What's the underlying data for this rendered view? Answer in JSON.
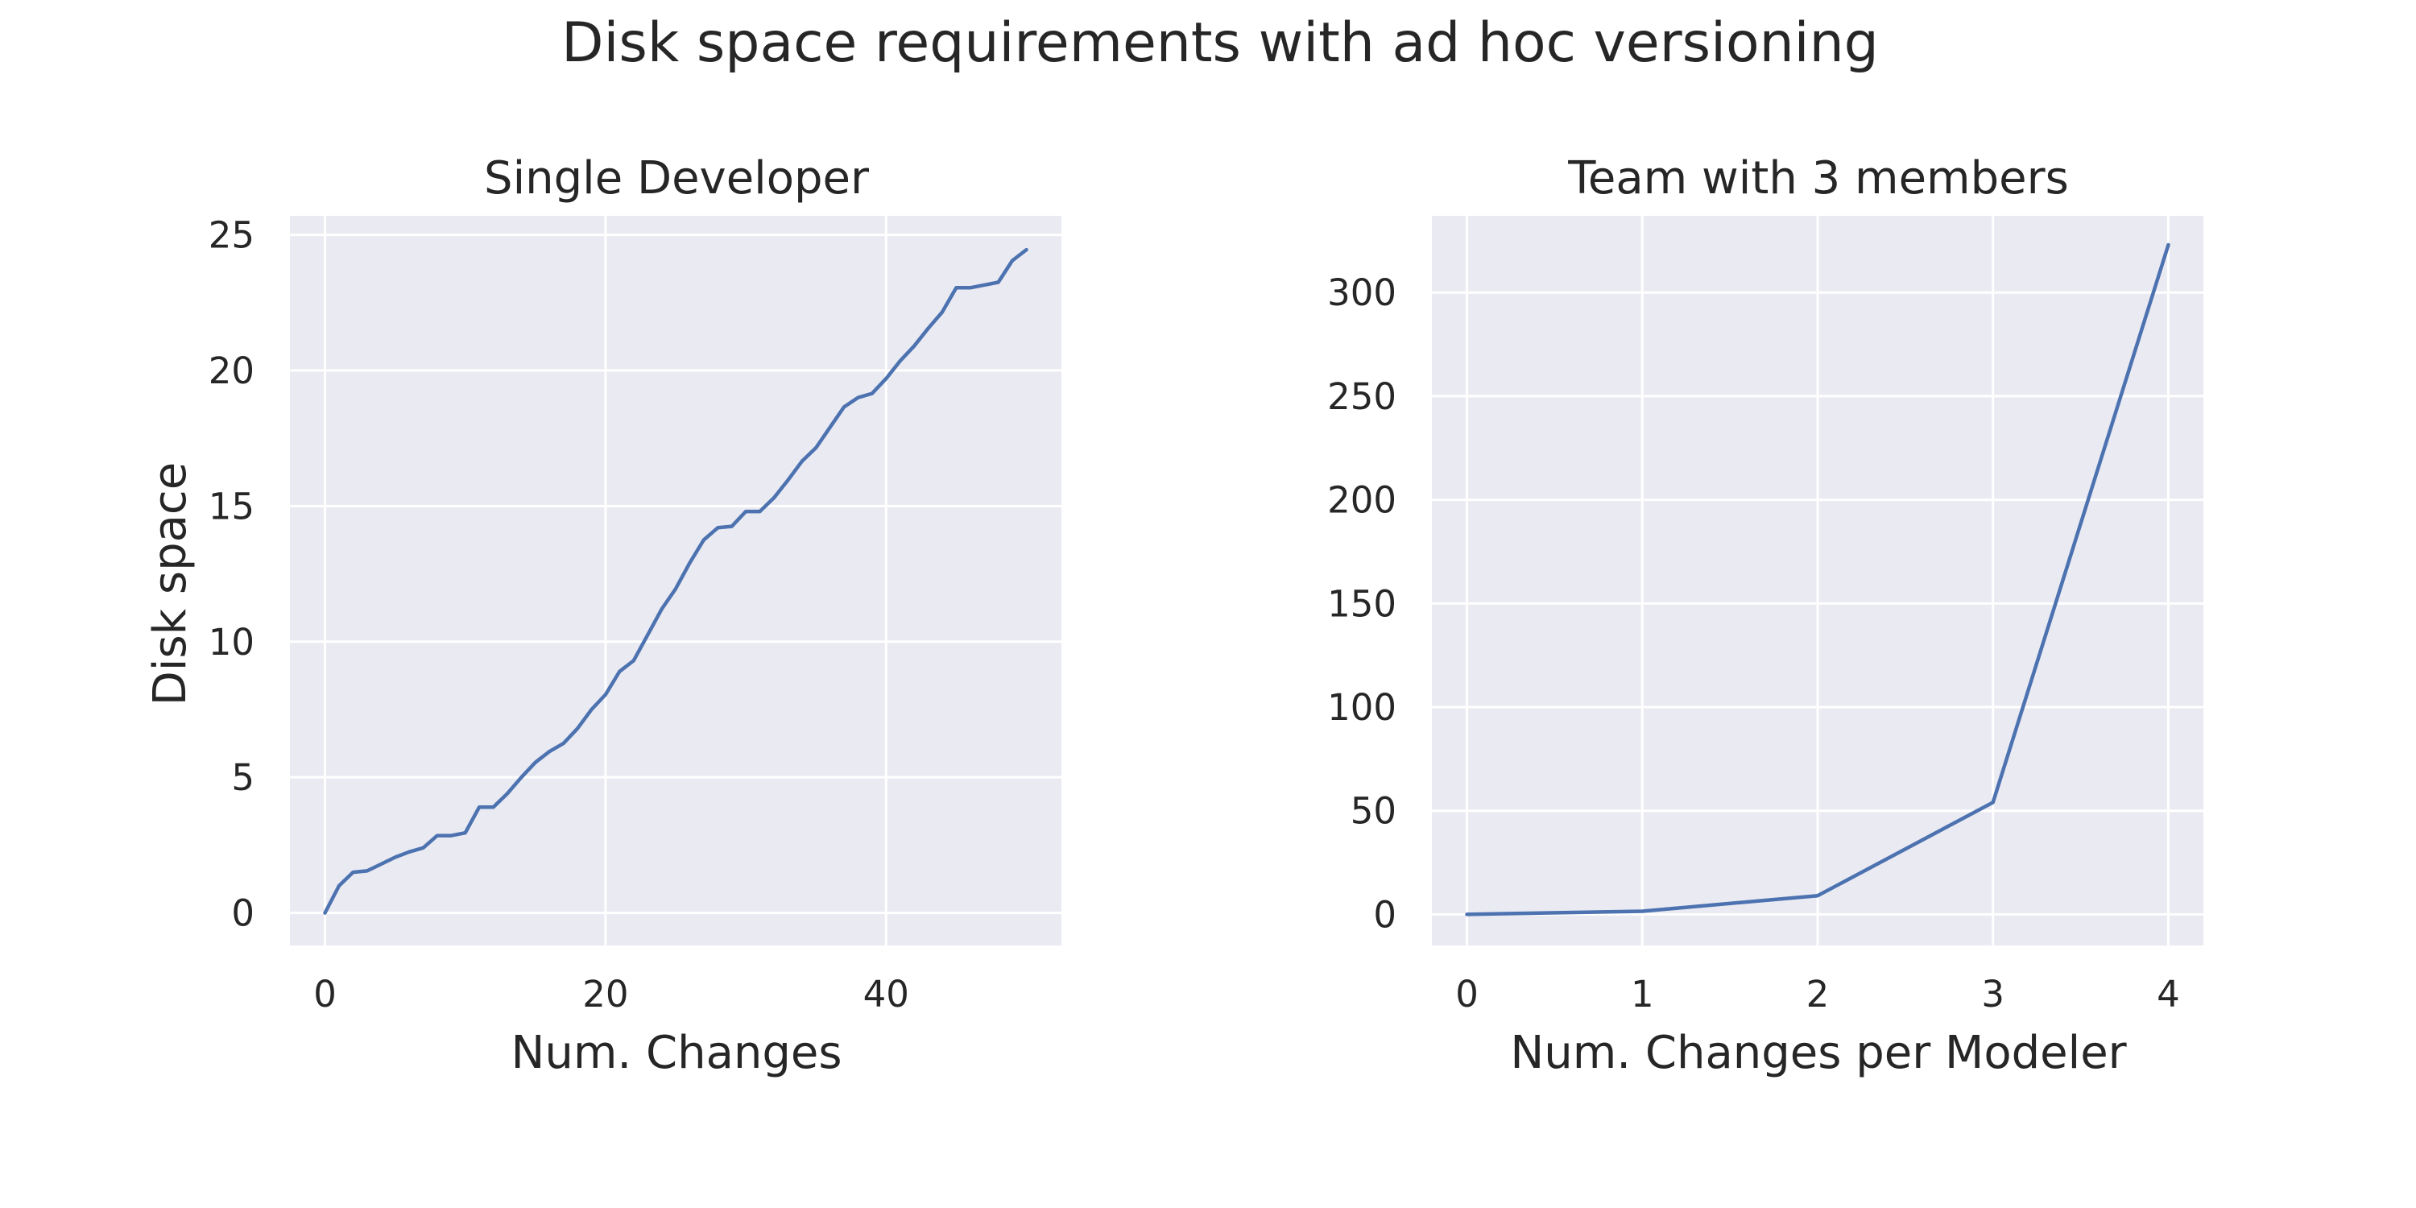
{
  "figure": {
    "title": "Disk space requirements with ad hoc versioning",
    "line_color": "#4C72B0",
    "background_color": "#EAEAF2",
    "grid_color": "#FFFFFF"
  },
  "chart_data": [
    {
      "type": "line",
      "title": "Single Developer",
      "xlabel": "Num. Changes",
      "ylabel": "Disk space",
      "xlim": [
        -2.5,
        52.5
      ],
      "ylim": [
        -1.2,
        25.7
      ],
      "xticks": [
        0,
        20,
        40
      ],
      "yticks": [
        0,
        5,
        10,
        15,
        20,
        25
      ],
      "grid": true,
      "series": [
        {
          "x": [
            0,
            1,
            2,
            3,
            4,
            5,
            6,
            7,
            8,
            9,
            10,
            11,
            12,
            13,
            14,
            15,
            16,
            17,
            18,
            19,
            20,
            21,
            22,
            23,
            24,
            25,
            26,
            27,
            28,
            29,
            30,
            31,
            32,
            33,
            34,
            35,
            36,
            37,
            38,
            39,
            40,
            41,
            42,
            43,
            44,
            45,
            46,
            47,
            48,
            49,
            50
          ],
          "values": [
            0,
            1.0,
            1.5,
            1.55,
            1.8,
            2.05,
            2.25,
            2.4,
            2.85,
            2.85,
            2.95,
            3.9,
            3.9,
            4.4,
            5.0,
            5.55,
            5.95,
            6.25,
            6.8,
            7.5,
            8.05,
            8.9,
            9.3,
            10.25,
            11.2,
            11.95,
            12.9,
            13.75,
            14.2,
            14.25,
            14.8,
            14.8,
            15.3,
            15.95,
            16.65,
            17.15,
            17.9,
            18.65,
            19.0,
            19.15,
            19.7,
            20.35,
            20.9,
            21.55,
            22.15,
            23.05,
            23.05,
            23.15,
            23.25,
            24.05,
            24.45
          ]
        }
      ]
    },
    {
      "type": "line",
      "title": "Team with 3 members",
      "xlabel": "Num. Changes per Modeler",
      "ylabel": "",
      "xlim": [
        -0.2,
        4.2
      ],
      "ylim": [
        -15,
        337
      ],
      "xticks": [
        0,
        1,
        2,
        3,
        4
      ],
      "yticks": [
        0,
        50,
        100,
        150,
        200,
        250,
        300
      ],
      "grid": true,
      "series": [
        {
          "x": [
            0,
            1,
            2,
            3,
            4
          ],
          "values": [
            0,
            1.5,
            9,
            54,
            323
          ]
        }
      ]
    }
  ]
}
